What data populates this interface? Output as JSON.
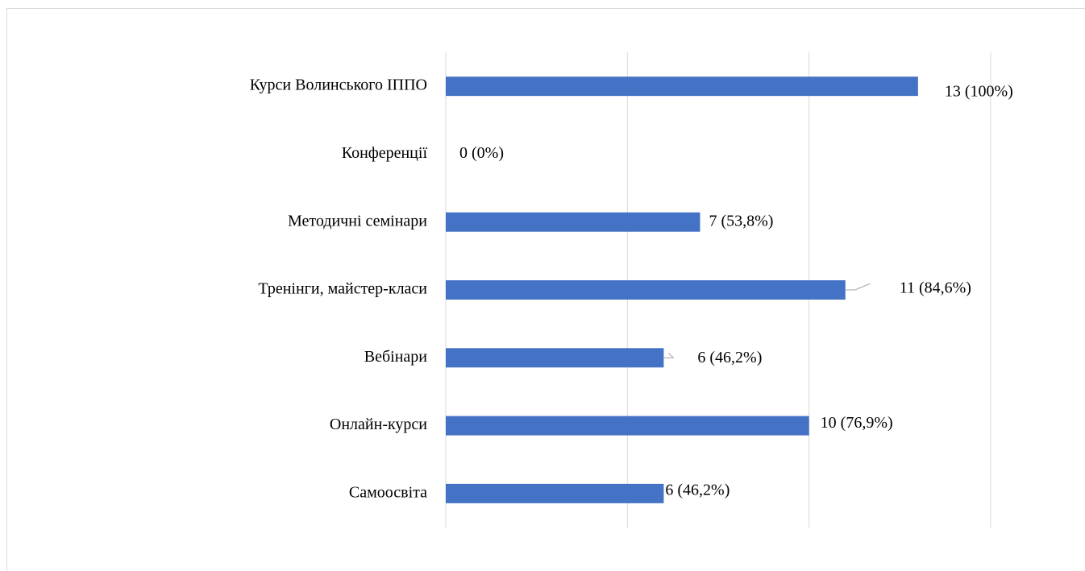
{
  "chart_data": {
    "type": "hbar",
    "categories": [
      "Курси Волинського ІППО",
      "Конференції",
      "Методичні семінари",
      "Тренінги, майстер-класи",
      "Вебінари",
      "Онлайн-курси",
      "Самоосвіта"
    ],
    "values": [
      13,
      0,
      7,
      11,
      6,
      10,
      6
    ],
    "value_labels": [
      "13 (100%)",
      "0 (0%)",
      "7 (53,8%)",
      "11 (84,6%)",
      "6 (46,2%)",
      "10 (76,9%)",
      "6 (46,2%)"
    ],
    "color": "#4472c4",
    "xlim": [
      0,
      15
    ],
    "xticks": [
      0,
      5,
      10,
      15
    ],
    "grid": true
  }
}
